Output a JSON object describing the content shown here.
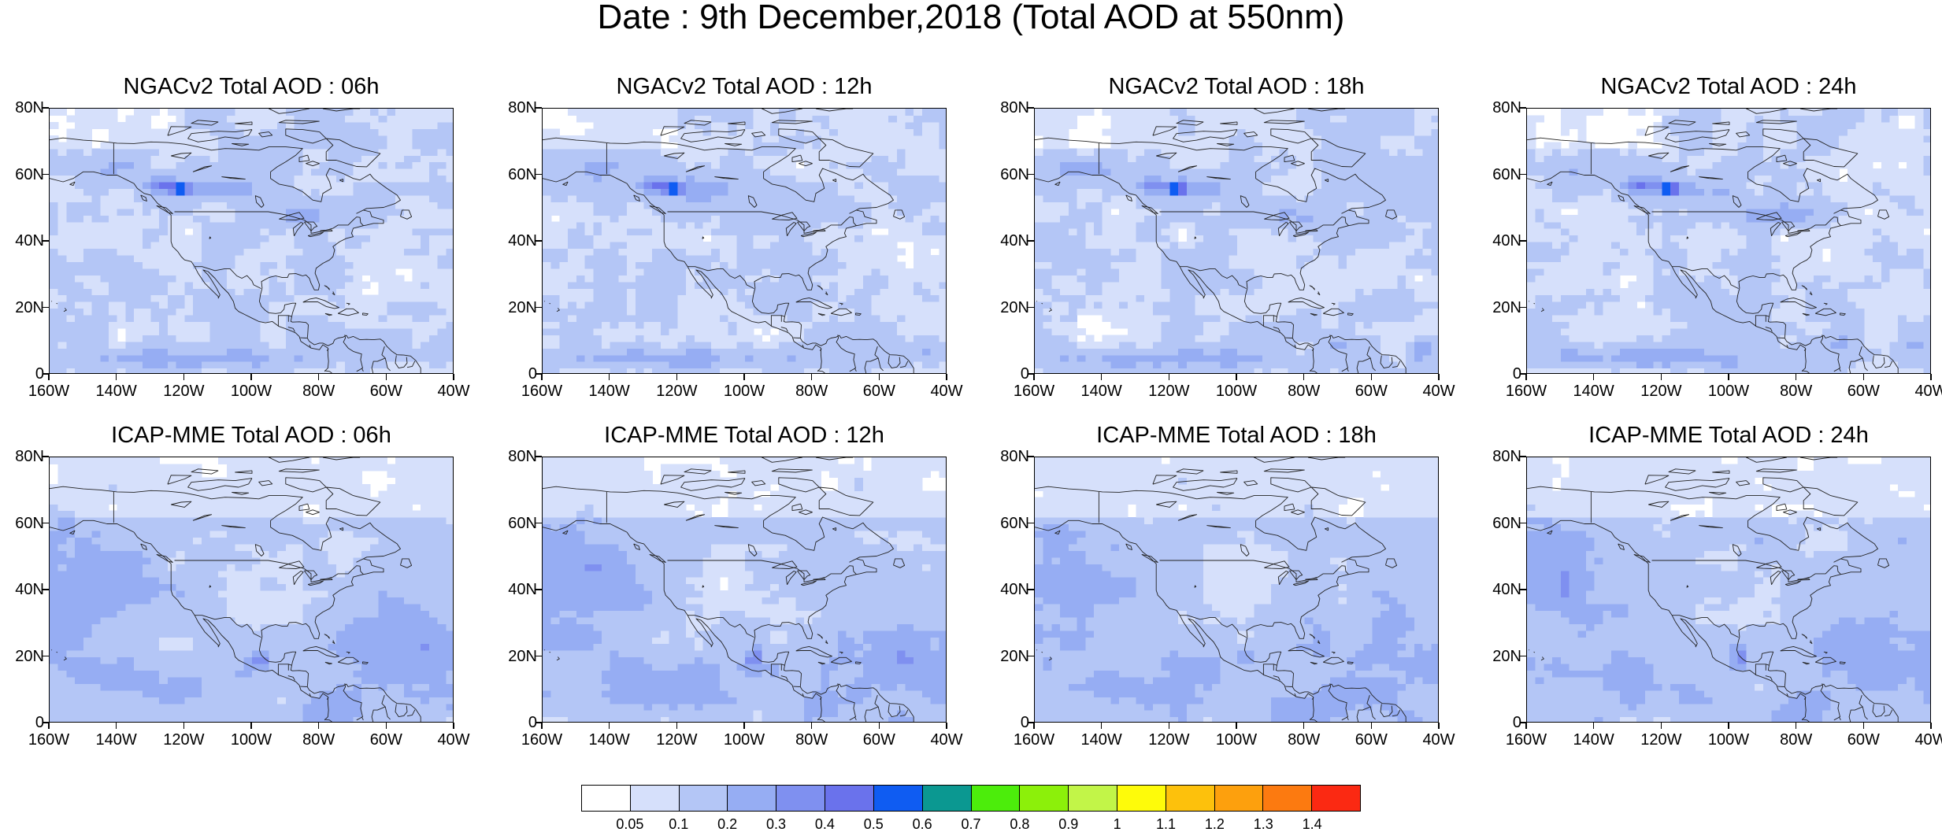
{
  "title": "Date : 9th December,2018 (Total AOD at 550nm)",
  "lat_ticks": [
    "80N",
    "60N",
    "40N",
    "20N",
    "0"
  ],
  "lon_ticks": [
    "160W",
    "140W",
    "120W",
    "100W",
    "80W",
    "60W",
    "40W"
  ],
  "map_extent": {
    "lon_min": -160,
    "lon_max": -40,
    "lat_min": 0,
    "lat_max": 80
  },
  "panels": [
    {
      "title": "NGACv2 Total AOD : 06h",
      "model": "NGAC",
      "lead": 6
    },
    {
      "title": "NGACv2 Total AOD : 12h",
      "model": "NGAC",
      "lead": 12
    },
    {
      "title": "NGACv2 Total AOD : 18h",
      "model": "NGAC",
      "lead": 18
    },
    {
      "title": "NGACv2 Total AOD : 24h",
      "model": "NGAC",
      "lead": 24
    },
    {
      "title": "ICAP-MME Total AOD : 06h",
      "model": "ICAP",
      "lead": 6
    },
    {
      "title": "ICAP-MME Total AOD : 12h",
      "model": "ICAP",
      "lead": 12
    },
    {
      "title": "ICAP-MME Total AOD : 18h",
      "model": "ICAP",
      "lead": 18
    },
    {
      "title": "ICAP-MME Total AOD : 24h",
      "model": "ICAP",
      "lead": 24
    }
  ],
  "colorbar": {
    "labels": [
      "0.05",
      "0.1",
      "0.2",
      "0.3",
      "0.4",
      "0.5",
      "0.6",
      "0.7",
      "0.8",
      "0.9",
      "1",
      "1.1",
      "1.2",
      "1.3",
      "1.4"
    ],
    "colors": [
      "#ffffff",
      "#d6e0fb",
      "#b4c6f6",
      "#96adf3",
      "#7f90f0",
      "#6a72ec",
      "#0f5cf2",
      "#0b9891",
      "#4ced0b",
      "#8cf00a",
      "#c2f548",
      "#fefb0a",
      "#fdc10c",
      "#fda00d",
      "#fc7a10",
      "#fb2912"
    ]
  }
}
